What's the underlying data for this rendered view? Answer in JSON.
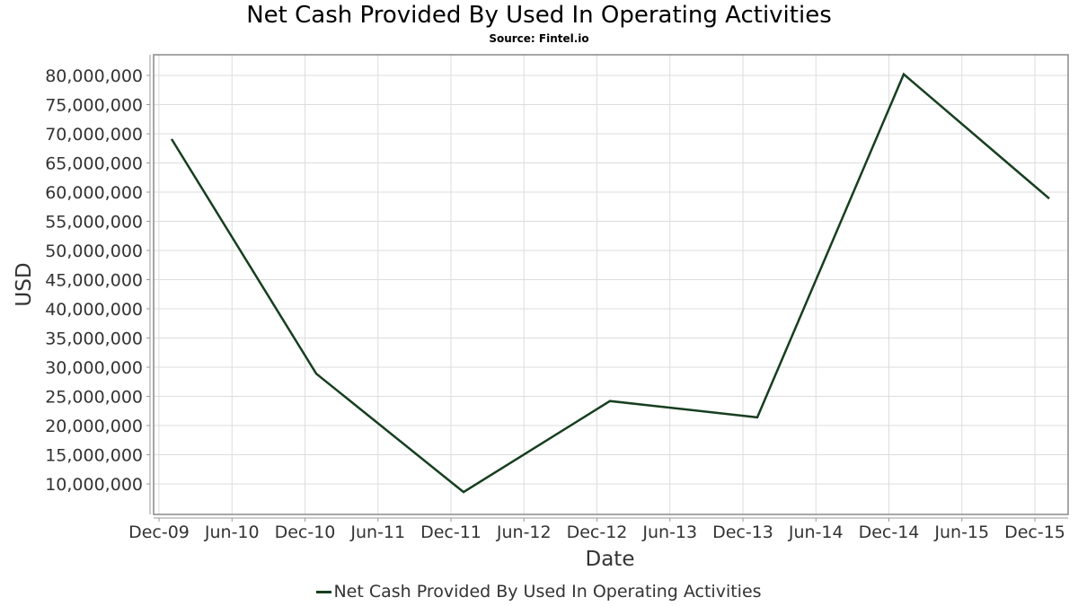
{
  "chart_data": {
    "type": "line",
    "title": "Net Cash Provided By Used In Operating Activities",
    "subtitle": "Source: Fintel.io",
    "xlabel": "Date",
    "ylabel": "USD",
    "x_ticks": [
      "Dec-09",
      "Jun-10",
      "Dec-10",
      "Jun-11",
      "Dec-11",
      "Jun-12",
      "Dec-12",
      "Jun-13",
      "Dec-13",
      "Jun-14",
      "Dec-14",
      "Jun-15",
      "Dec-15"
    ],
    "y_ticks": [
      "80,000,000",
      "75,000,000",
      "70,000,000",
      "65,000,000",
      "60,000,000",
      "55,000,000",
      "50,000,000",
      "45,000,000",
      "40,000,000",
      "35,000,000",
      "30,000,000",
      "25,000,000",
      "20,000,000",
      "15,000,000",
      "10,000,000"
    ],
    "ylim": [
      4800000,
      83500000
    ],
    "grid": true,
    "legend_position": "bottom",
    "series": [
      {
        "name": "Net Cash Provided By Used In Operating Activities",
        "color": "#173e1f",
        "x": [
          "2010-01",
          "2011-01",
          "2012-01",
          "2013-01",
          "2014-01",
          "2015-01",
          "2016-01"
        ],
        "values": [
          69100000,
          28900000,
          8600000,
          24200000,
          21400000,
          80200000,
          58900000
        ]
      }
    ]
  },
  "legend": {
    "label": "Net Cash Provided By Used In Operating Activities"
  }
}
